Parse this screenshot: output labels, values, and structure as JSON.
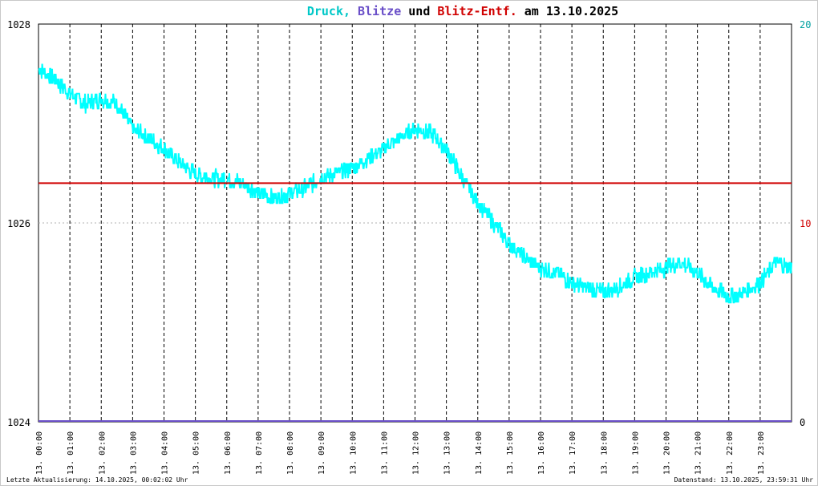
{
  "title": {
    "part1": "Druck,",
    "part2": "Blitze",
    "part3": "und",
    "part4": "Blitz-Entf.",
    "part5": "am 13.10.2025",
    "color1": "#00c8c8",
    "color2": "#6a4fc8",
    "color3": "#000000",
    "color4": "#d00000",
    "color5": "#000000"
  },
  "footer": {
    "left": "Letzte Aktualisierung: 14.10.2025, 00:02:02 Uhr",
    "right": "Datenstand: 13.10.2025, 23:59:31 Uhr"
  },
  "chart_data": {
    "type": "line",
    "y_left": {
      "range": [
        1024,
        1028
      ],
      "ticks": [
        "1028",
        "1026",
        "1024"
      ]
    },
    "y_right": {
      "range": [
        0,
        20
      ],
      "ticks": [
        "20",
        "10",
        "0"
      ]
    },
    "x_ticks": [
      "13. 00:00",
      "13. 01:00",
      "13. 02:00",
      "13. 03:00",
      "13. 04:00",
      "13. 05:00",
      "13. 06:00",
      "13. 07:00",
      "13. 08:00",
      "13. 09:00",
      "13. 10:00",
      "13. 11:00",
      "13. 12:00",
      "13. 13:00",
      "13. 14:00",
      "13. 15:00",
      "13. 16:00",
      "13. 17:00",
      "13. 18:00",
      "13. 19:00",
      "13. 20:00",
      "13. 21:00",
      "13. 22:00",
      "13. 23:00"
    ],
    "grid": true,
    "series": [
      {
        "name": "Druck",
        "axis": "left",
        "color": "#00ffff",
        "x_hours": [
          0,
          0.5,
          1,
          1.5,
          2,
          2.5,
          3,
          3.5,
          4,
          4.5,
          5,
          5.5,
          6,
          6.5,
          7,
          7.5,
          8,
          8.5,
          9,
          9.5,
          10,
          10.5,
          11,
          11.5,
          12,
          12.5,
          13,
          13.5,
          14,
          14.5,
          15,
          15.5,
          16,
          16.5,
          17,
          17.5,
          18,
          18.5,
          19,
          19.5,
          20,
          20.5,
          21,
          21.5,
          22,
          22.5,
          23,
          23.5,
          24
        ],
        "values": [
          1027.55,
          1027.45,
          1027.3,
          1027.2,
          1027.25,
          1027.2,
          1026.95,
          1026.85,
          1026.75,
          1026.6,
          1026.5,
          1026.45,
          1026.45,
          1026.4,
          1026.3,
          1026.25,
          1026.3,
          1026.35,
          1026.45,
          1026.5,
          1026.55,
          1026.65,
          1026.75,
          1026.85,
          1026.95,
          1026.9,
          1026.75,
          1026.45,
          1026.2,
          1026.0,
          1025.8,
          1025.65,
          1025.55,
          1025.5,
          1025.4,
          1025.35,
          1025.3,
          1025.35,
          1025.45,
          1025.5,
          1025.55,
          1025.6,
          1025.5,
          1025.35,
          1025.25,
          1025.3,
          1025.4,
          1025.6,
          1025.55
        ],
        "noise": 0.08
      },
      {
        "name": "Blitz-Entf.",
        "axis": "right",
        "color": "#d00000",
        "x_hours": [
          0,
          24
        ],
        "values": [
          12,
          12
        ]
      },
      {
        "name": "Blitze",
        "axis": "right",
        "color": "#6a4fc8",
        "x_hours": [
          0,
          24
        ],
        "values": [
          0,
          0
        ]
      }
    ]
  }
}
